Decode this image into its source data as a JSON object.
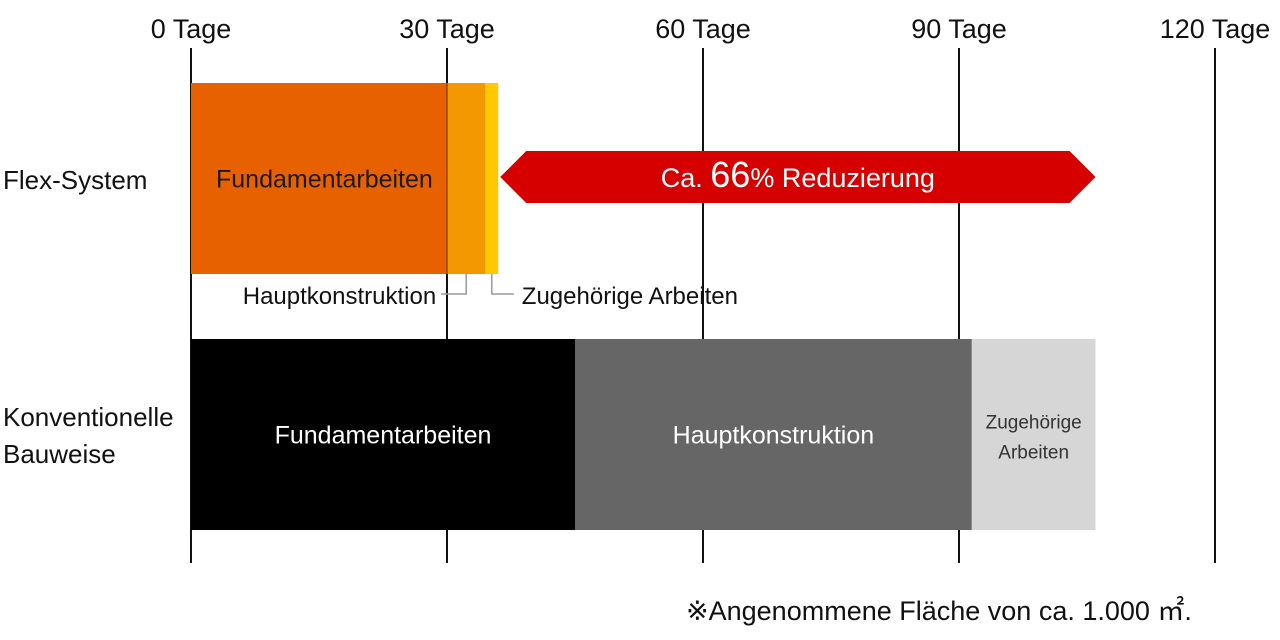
{
  "chart_data": {
    "type": "bar",
    "orientation": "horizontal-stacked",
    "x_unit": "Tage",
    "xlim": [
      0,
      120
    ],
    "ticks": [
      {
        "value": 0,
        "label": "0 Tage"
      },
      {
        "value": 30,
        "label": "30 Tage"
      },
      {
        "value": 60,
        "label": "60 Tage"
      },
      {
        "value": 90,
        "label": "90 Tage"
      },
      {
        "value": 120,
        "label": "120 Tage"
      }
    ],
    "rows": [
      {
        "label": "Flex-System",
        "segments": [
          {
            "name": "Fundamentarbeiten",
            "start": 0,
            "end": 30,
            "color": "#E86100",
            "text_color": "#1a1a1a",
            "label": "Fundamentarbeiten"
          },
          {
            "name": "Hauptkonstruktion",
            "start": 30,
            "end": 34.5,
            "color": "#F39800",
            "label": ""
          },
          {
            "name": "Zugehörige Arbeiten",
            "start": 34.5,
            "end": 36,
            "color": "#FFC800",
            "label": ""
          }
        ],
        "callouts": [
          "Hauptkonstruktion",
          "Zugehörige Arbeiten"
        ]
      },
      {
        "label": "Konventionelle Bauweise",
        "label_lines": [
          "Konventionelle",
          "Bauweise"
        ],
        "segments": [
          {
            "name": "Fundamentarbeiten",
            "start": 0,
            "end": 45,
            "color": "#000000",
            "text_color": "#ffffff",
            "label": "Fundamentarbeiten"
          },
          {
            "name": "Hauptkonstruktion",
            "start": 45,
            "end": 91.5,
            "color": "#666666",
            "text_color": "#ffffff",
            "label": "Hauptkonstruktion"
          },
          {
            "name": "Zugehörige Arbeiten",
            "start": 91.5,
            "end": 106,
            "color": "#D6D6D6",
            "text_color": "#333333",
            "label_lines": [
              "Zugehörige",
              "Arbeiten"
            ]
          }
        ]
      }
    ],
    "reduction_arrow": {
      "from": 36,
      "to": 106,
      "text_pre": "Ca. ",
      "text_value": "66",
      "text_post": "% Reduzierung",
      "color": "#D70000"
    }
  },
  "footnote": "※Angenommene Fläche von ca. 1.000 ㎡."
}
